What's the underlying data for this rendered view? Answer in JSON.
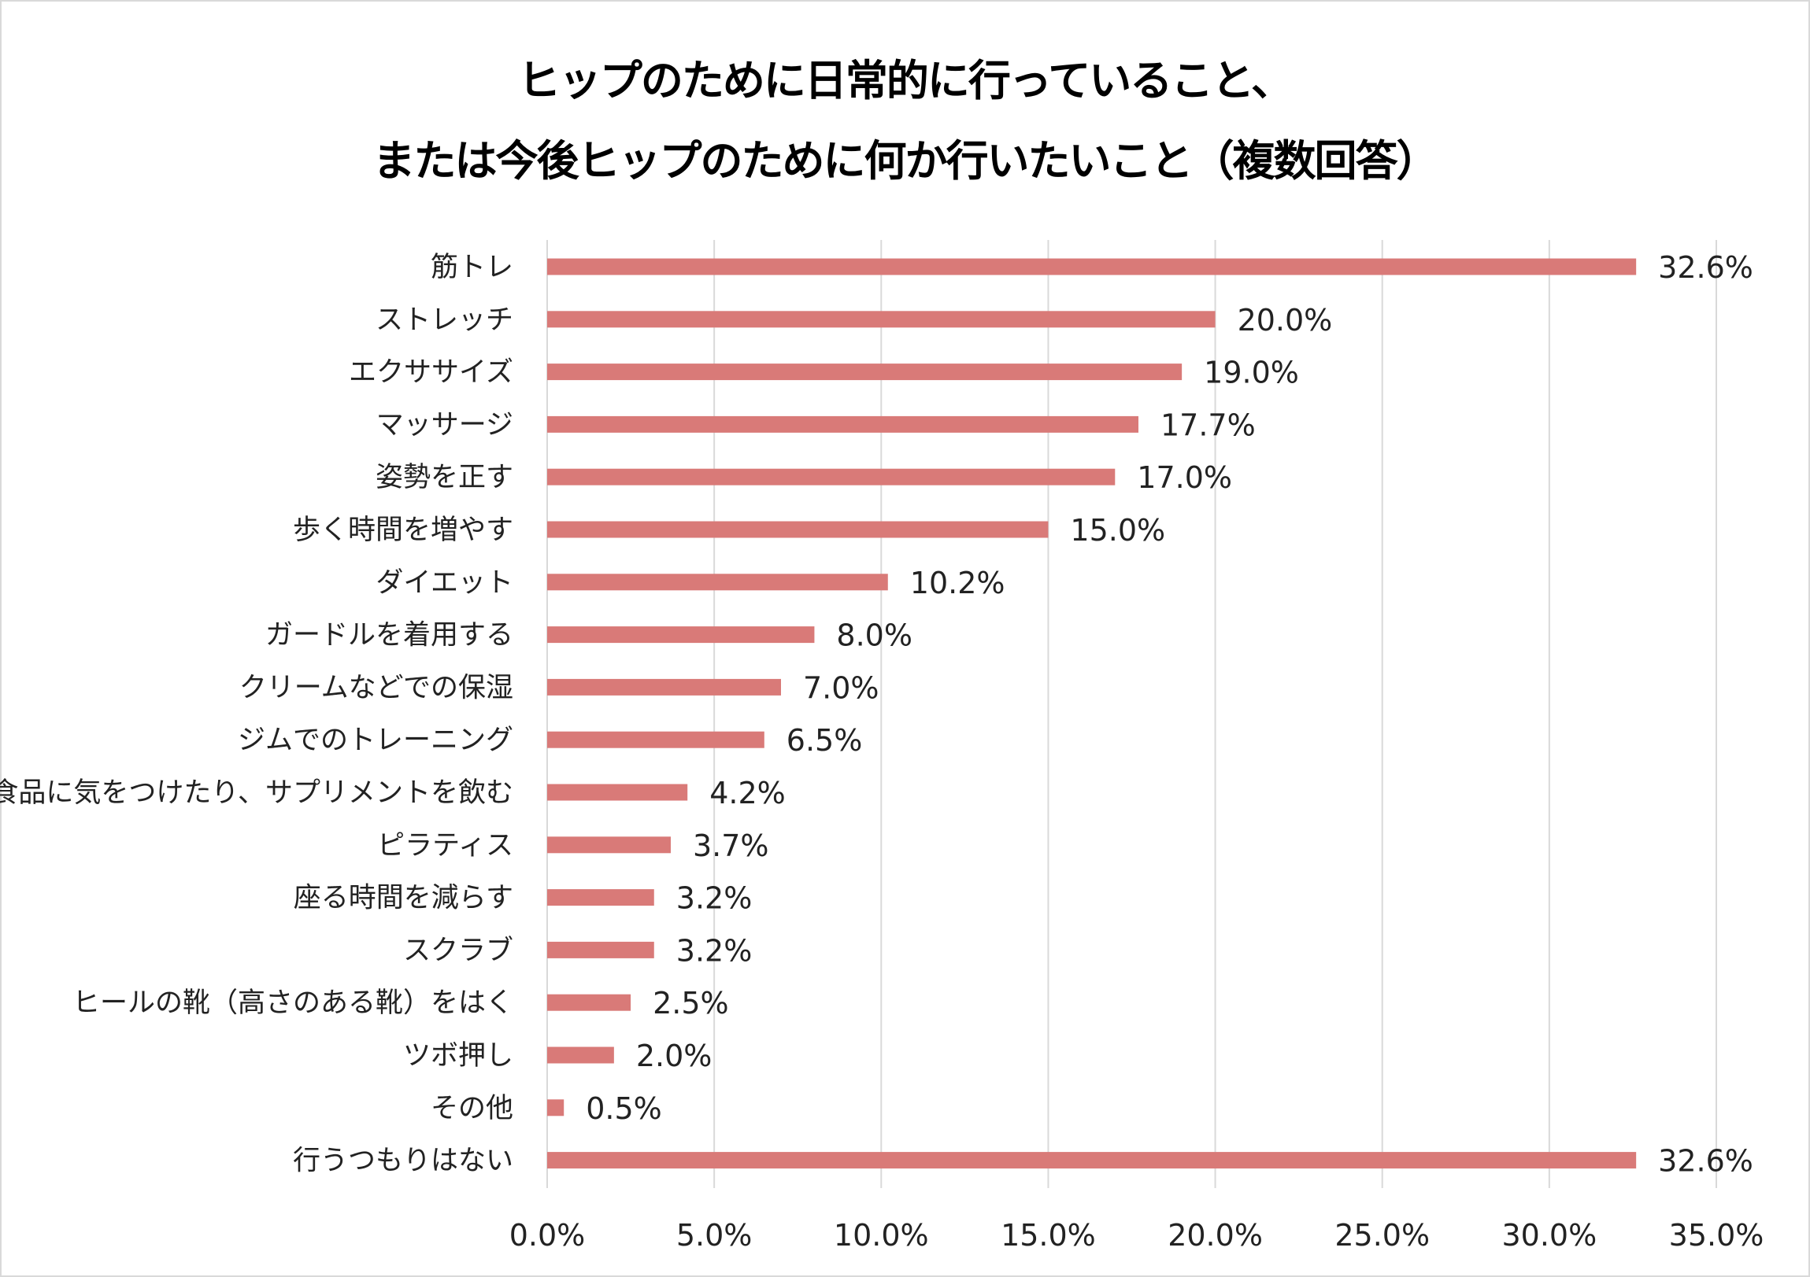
{
  "chart_data": {
    "type": "bar",
    "orientation": "horizontal",
    "title": [
      "ヒップのために日常的に行っていること、",
      "または今後ヒップのために何か行いたいこと（複数回答）"
    ],
    "categories": [
      "筋トレ",
      "ストレッチ",
      "エクササイズ",
      "マッサージ",
      "姿勢を正す",
      "歩く時間を増やす",
      "ダイエット",
      "ガードルを着用する",
      "クリームなどでの保湿",
      "ジムでのトレーニング",
      "食品に気をつけたり、サプリメントを飲む",
      "ピラティス",
      "座る時間を減らす",
      "スクラブ",
      "ヒールの靴（高さのある靴）をはく",
      "ツボ押し",
      "その他",
      "行うつもりはない"
    ],
    "values": [
      32.6,
      20.0,
      19.0,
      17.7,
      17.0,
      15.0,
      10.2,
      8.0,
      7.0,
      6.5,
      4.2,
      3.7,
      3.2,
      3.2,
      2.5,
      2.0,
      0.5,
      32.6
    ],
    "data_labels": [
      "32.6%",
      "20.0%",
      "19.0%",
      "17.7%",
      "17.0%",
      "15.0%",
      "10.2%",
      "8.0%",
      "7.0%",
      "6.5%",
      "4.2%",
      "3.7%",
      "3.2%",
      "3.2%",
      "2.5%",
      "2.0%",
      "0.5%",
      "32.6%"
    ],
    "xlim": [
      0,
      35
    ],
    "x_ticks": [
      "0.0%",
      "5.0%",
      "10.0%",
      "15.0%",
      "20.0%",
      "25.0%",
      "30.0%",
      "35.0%"
    ],
    "grid": "vertical",
    "bar_color": "#d97a78",
    "grid_color": "#d9d9d9"
  }
}
